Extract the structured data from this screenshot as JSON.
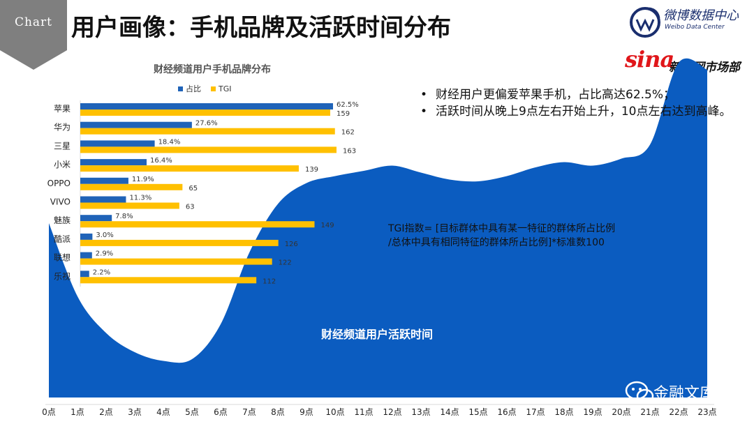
{
  "header": {
    "tag": "Chart",
    "title": "用户画像：手机品牌及活跃时间分布",
    "weibo_cn": "微博数据中心",
    "weibo_en": "Weibo Data Center",
    "sina_word": "sina",
    "sina_cn": "新浪网市场部"
  },
  "bullets": [
    "财经用户更偏爱苹果手机，占比高达62.5%；",
    "活跃时间从晚上9点左右开始上升，10点左右达到高峰。"
  ],
  "tgi_note": {
    "line1": "TGI指数= [目标群体中具有某一特征的群体所占比例",
    "line2": "/总体中具有相同特征的群体所占比例]*标准数100"
  },
  "watermark": "金融文库",
  "colors": {
    "share": "#1f63b8",
    "tgi": "#ffc000",
    "area": "#0b5cc0",
    "tag": "#7f7f7f"
  },
  "chart_data": [
    {
      "type": "bar",
      "orientation": "horizontal",
      "title": "财经频道用户手机品牌分布",
      "legend_position": "top",
      "categories": [
        "苹果",
        "华为",
        "三星",
        "小米",
        "OPPO",
        "VIVO",
        "魅族",
        "酷派",
        "联想",
        "乐视"
      ],
      "series": [
        {
          "name": "占比",
          "values": [
            62.5,
            27.6,
            18.4,
            16.4,
            11.9,
            11.3,
            7.8,
            3.0,
            2.9,
            2.2
          ],
          "labels": [
            "62.5%",
            "27.6%",
            "18.4%",
            "16.4%",
            "11.9%",
            "11.3%",
            "7.8%",
            "3.0%",
            "2.9%",
            "2.2%"
          ]
        },
        {
          "name": "TGI",
          "values": [
            159,
            162,
            163,
            139,
            65,
            63,
            149,
            126,
            122,
            112
          ],
          "labels": [
            "159",
            "162",
            "163",
            "139",
            "65",
            "63",
            "149",
            "126",
            "122",
            "112"
          ]
        }
      ],
      "grid": false
    },
    {
      "type": "area",
      "title": "财经频道用户活跃时间",
      "x": [
        "0点",
        "1点",
        "2点",
        "3点",
        "4点",
        "5点",
        "6点",
        "7点",
        "8点",
        "9点",
        "10点",
        "11点",
        "12点",
        "13点",
        "14点",
        "15点",
        "16点",
        "17点",
        "18点",
        "19点",
        "20点",
        "21点",
        "22点",
        "23点"
      ],
      "values": [
        100,
        58,
        37,
        26,
        21,
        22,
        42,
        83,
        111,
        123,
        127,
        130,
        133,
        129,
        125,
        124,
        127,
        132,
        135,
        133,
        137,
        145,
        192,
        188
      ],
      "ylim": [
        0,
        200
      ],
      "grid": false,
      "legend": false
    }
  ]
}
